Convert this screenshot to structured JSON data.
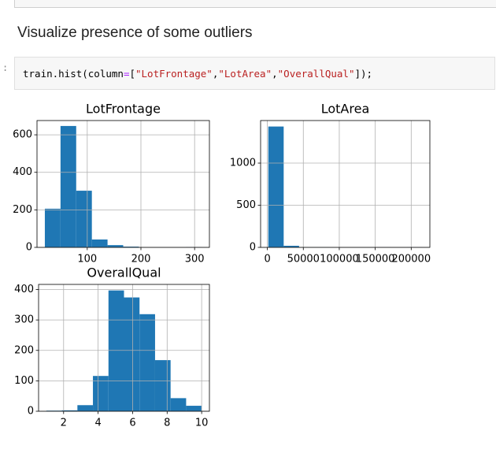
{
  "prompt": ":",
  "heading": "Visualize presence of some outliers",
  "code": [
    {
      "text": "train.hist(column",
      "color": "#000000"
    },
    {
      "text": "=",
      "color": "#aa22ff"
    },
    {
      "text": "[",
      "color": "#000000"
    },
    {
      "text": "\"LotFrontage\"",
      "color": "#ba2121"
    },
    {
      "text": ",",
      "color": "#000000"
    },
    {
      "text": "\"LotArea\"",
      "color": "#ba2121"
    },
    {
      "text": ",",
      "color": "#000000"
    },
    {
      "text": "\"OverallQual\"",
      "color": "#ba2121"
    },
    {
      "text": "]);",
      "color": "#000000"
    }
  ],
  "chart_data": [
    {
      "type": "histogram",
      "title": "LotFrontage",
      "color": "#1f77b4",
      "grid": true,
      "bins": [
        21,
        50.2,
        79.4,
        108.6,
        137.8,
        167,
        196.2,
        225.4,
        254.6,
        283.8,
        313
      ],
      "values": [
        206,
        647,
        302,
        42,
        12,
        4,
        0,
        0,
        0,
        2
      ],
      "xlim": [
        6.4,
        327.6
      ],
      "xticks": [
        100,
        200,
        300
      ],
      "ylim": [
        0,
        676
      ],
      "yticks": [
        0,
        200,
        400,
        600
      ]
    },
    {
      "type": "histogram",
      "title": "LotArea",
      "color": "#1f77b4",
      "grid": true,
      "bins": [
        1300,
        22694.5,
        44089,
        65483.5,
        86878,
        108272.5,
        129667,
        151061.5,
        172456,
        193850.5,
        215245
      ],
      "values": [
        1434,
        19,
        3,
        2,
        0,
        0,
        0,
        1,
        0,
        1
      ],
      "xlim": [
        -9397,
        225942
      ],
      "xticks": [
        0,
        50000,
        100000,
        150000,
        200000
      ],
      "ylim": [
        0,
        1505
      ],
      "yticks": [
        0,
        500,
        1000
      ]
    },
    {
      "type": "histogram",
      "title": "OverallQual",
      "color": "#1f77b4",
      "grid": true,
      "bins": [
        1,
        1.9,
        2.8,
        3.7,
        4.6,
        5.5,
        6.4,
        7.3,
        8.2,
        9.1,
        10
      ],
      "values": [
        2,
        3,
        20,
        116,
        397,
        374,
        319,
        168,
        43,
        18
      ],
      "xlim": [
        0.55,
        10.45
      ],
      "xticks": [
        2,
        4,
        6,
        8,
        10
      ],
      "ylim": [
        0,
        416.85
      ],
      "yticks": [
        0,
        100,
        200,
        300,
        400
      ]
    }
  ]
}
